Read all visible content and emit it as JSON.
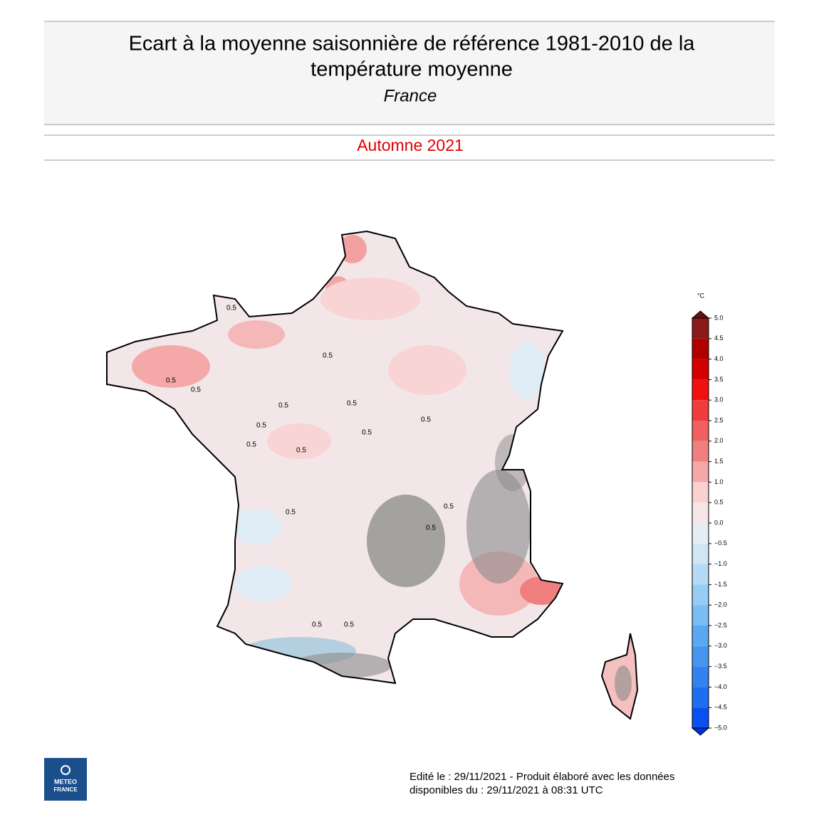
{
  "header": {
    "title_lines": [
      "Ecart à la moyenne saisonnière de référence 1981-2010 de la",
      "température moyenne"
    ],
    "region": "France",
    "period": "Automne 2021"
  },
  "map": {
    "contour_labels": [
      "0.5",
      "0.5",
      "0.5",
      "0.5",
      "0.5",
      "0.5",
      "0.5",
      "0.5",
      "0.5",
      "0.5",
      "0.5",
      "0.5",
      "0.5",
      "0.5",
      "0.5",
      "0.5"
    ]
  },
  "colorbar": {
    "unit": "°C",
    "ticks": [
      {
        "value": 5,
        "label": "5.0"
      },
      {
        "value": 4.5,
        "label": "4.5"
      },
      {
        "value": 4,
        "label": "4.0"
      },
      {
        "value": 3.5,
        "label": "3.5"
      },
      {
        "value": 3,
        "label": "3.0"
      },
      {
        "value": 2.5,
        "label": "2.5"
      },
      {
        "value": 2,
        "label": "2.0"
      },
      {
        "value": 1.5,
        "label": "1.5"
      },
      {
        "value": 1,
        "label": "1.0"
      },
      {
        "value": 0.5,
        "label": "0.5"
      },
      {
        "value": 0,
        "label": "0.0"
      },
      {
        "value": -0.5,
        "label": "−0.5"
      },
      {
        "value": -1,
        "label": "−1.0"
      },
      {
        "value": -1.5,
        "label": "−1.5"
      },
      {
        "value": -2,
        "label": "−2.0"
      },
      {
        "value": -2.5,
        "label": "−2.5"
      },
      {
        "value": -3,
        "label": "−3.0"
      },
      {
        "value": -3.5,
        "label": "−3.5"
      },
      {
        "value": -4,
        "label": "−4.0"
      },
      {
        "value": -4.5,
        "label": "−4.5"
      },
      {
        "value": -5,
        "label": "−5.0"
      }
    ],
    "colors": [
      "#8b1a1a",
      "#b00000",
      "#d40000",
      "#f01010",
      "#f03c3c",
      "#f06060",
      "#f08080",
      "#f5a8a8",
      "#fad0d0",
      "#f5e6e8",
      "#e6eef5",
      "#d0e6f5",
      "#b4daf5",
      "#96cdf5",
      "#78bef5",
      "#5aa8f0",
      "#4696f0",
      "#3282f0",
      "#1e6ef0",
      "#0a50f0"
    ],
    "over_color": "#6b1010",
    "under_color": "#0030e0"
  },
  "footer": {
    "lines": [
      "Edité le : 29/11/2021 - Produit élaboré avec les données",
      "disponibles du : 29/11/2021 à 08:31 UTC"
    ]
  },
  "logo": {
    "lines": [
      "METEO",
      "FRANCE"
    ]
  }
}
